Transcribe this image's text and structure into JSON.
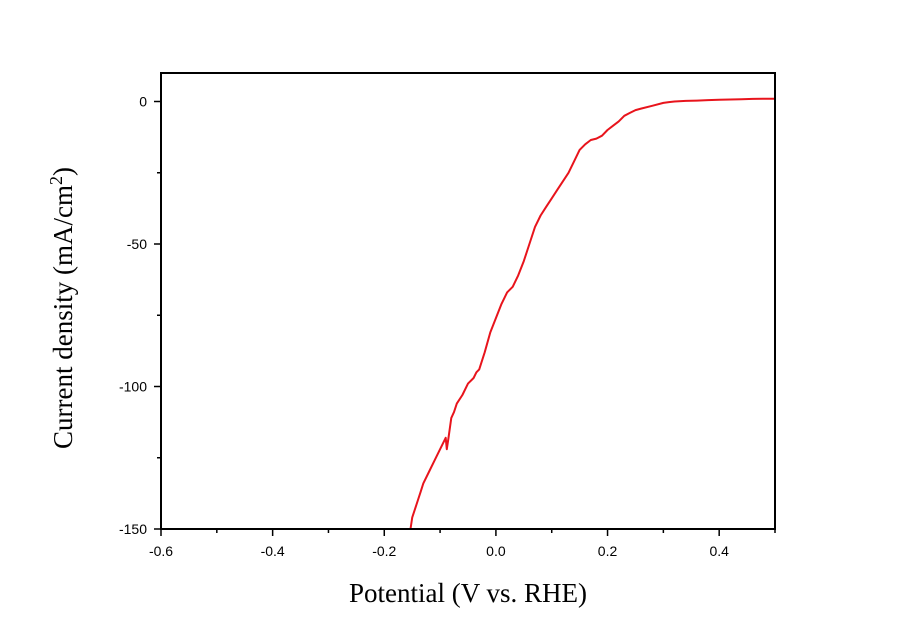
{
  "chart_data": {
    "type": "line",
    "xlabel": "Potential (V vs. RHE)",
    "ylabel": {
      "prefix": "Current density (mA/cm",
      "superscript": "2",
      "suffix": ")"
    },
    "xlim": [
      -0.6,
      0.5
    ],
    "ylim": [
      -150,
      10
    ],
    "xticks": [
      -0.6,
      -0.4,
      -0.2,
      0.0,
      0.2,
      0.4
    ],
    "xtick_labels": [
      "-0.6",
      "-0.4",
      "-0.2",
      "0.0",
      "0.2",
      "0.4"
    ],
    "yticks": [
      0,
      -50,
      -100,
      -150
    ],
    "ytick_labels": [
      "0",
      "-50",
      "-100",
      "-150"
    ],
    "grid": false,
    "series": [
      {
        "color": "#e8141c",
        "x": [
          -0.153,
          -0.15,
          -0.145,
          -0.14,
          -0.135,
          -0.13,
          -0.12,
          -0.11,
          -0.1,
          -0.09,
          -0.088,
          -0.085,
          -0.082,
          -0.08,
          -0.075,
          -0.07,
          -0.06,
          -0.05,
          -0.04,
          -0.035,
          -0.03,
          -0.02,
          -0.01,
          0.0,
          0.01,
          0.02,
          0.03,
          0.04,
          0.05,
          0.06,
          0.07,
          0.08,
          0.09,
          0.1,
          0.11,
          0.12,
          0.13,
          0.14,
          0.15,
          0.16,
          0.17,
          0.18,
          0.19,
          0.2,
          0.21,
          0.22,
          0.23,
          0.24,
          0.25,
          0.26,
          0.28,
          0.3,
          0.31,
          0.32,
          0.34,
          0.36,
          0.38,
          0.4,
          0.42,
          0.44,
          0.46,
          0.48,
          0.5
        ],
        "y": [
          -150,
          -146,
          -143,
          -140,
          -137,
          -134,
          -130,
          -126,
          -122,
          -118,
          -122,
          -118,
          -114,
          -111,
          -109,
          -106,
          -103,
          -99,
          -97,
          -95,
          -94,
          -88,
          -81,
          -76,
          -71,
          -67,
          -65,
          -61,
          -56,
          -50,
          -44,
          -40,
          -37,
          -34,
          -31,
          -28,
          -25,
          -21,
          -17,
          -15,
          -13.5,
          -13,
          -12,
          -10,
          -8.5,
          -7,
          -5,
          -4,
          -3,
          -2.5,
          -1.5,
          -0.5,
          -0.2,
          0,
          0.2,
          0.3,
          0.5,
          0.6,
          0.7,
          0.8,
          0.9,
          1.0,
          1.0
        ]
      }
    ]
  }
}
